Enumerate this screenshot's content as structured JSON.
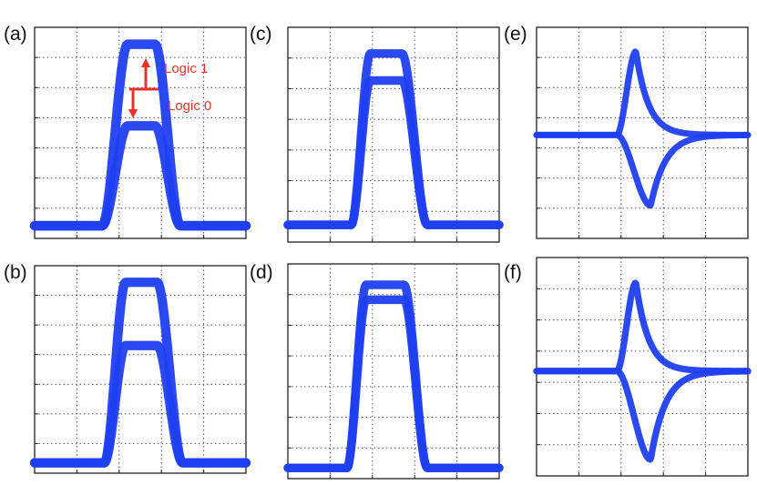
{
  "figure": {
    "trace_color": "#1f3ff2",
    "annotation_color": "#e8332c",
    "frame_color": "#222222",
    "grid": true
  },
  "chart_data": [
    {
      "panel": "(a)",
      "type": "line",
      "kind": "eye",
      "levels": [
        [
          0,
          1.0
        ],
        [
          0,
          0.55
        ]
      ],
      "rise": [
        0.32,
        0.44
      ],
      "fall": [
        0.57,
        0.69
      ],
      "thickness": 0.045,
      "annotations": [
        {
          "text": "Logic 1",
          "level": 1.0
        },
        {
          "text": "Logic 0",
          "level": 0.55
        }
      ]
    },
    {
      "panel": "(b)",
      "type": "line",
      "kind": "eye",
      "levels": [
        [
          0,
          1.0
        ],
        [
          0,
          0.65
        ]
      ],
      "rise": [
        0.33,
        0.43
      ],
      "fall": [
        0.58,
        0.7
      ],
      "thickness": 0.045
    },
    {
      "panel": "(c)",
      "type": "line",
      "kind": "eye",
      "levels": [
        [
          0,
          0.95
        ],
        [
          0,
          0.8
        ]
      ],
      "rise": [
        0.3,
        0.39
      ],
      "fall": [
        0.54,
        0.66
      ],
      "thickness": 0.04
    },
    {
      "panel": "(d)",
      "type": "line",
      "kind": "eye",
      "levels": [
        [
          0,
          0.98
        ],
        [
          0,
          0.9
        ]
      ],
      "rise": [
        0.28,
        0.37
      ],
      "fall": [
        0.55,
        0.66
      ],
      "thickness": 0.04
    },
    {
      "panel": "(e)",
      "type": "line",
      "kind": "spike",
      "baseline": 0.5,
      "pos_peak": 0.95,
      "neg_peak": 0.12,
      "peak_x": 0.47,
      "thickness": 0.03
    },
    {
      "panel": "(f)",
      "type": "line",
      "kind": "spike",
      "baseline": 0.5,
      "pos_peak": 0.95,
      "neg_peak": 0.05,
      "peak_x": 0.47,
      "thickness": 0.03
    }
  ]
}
